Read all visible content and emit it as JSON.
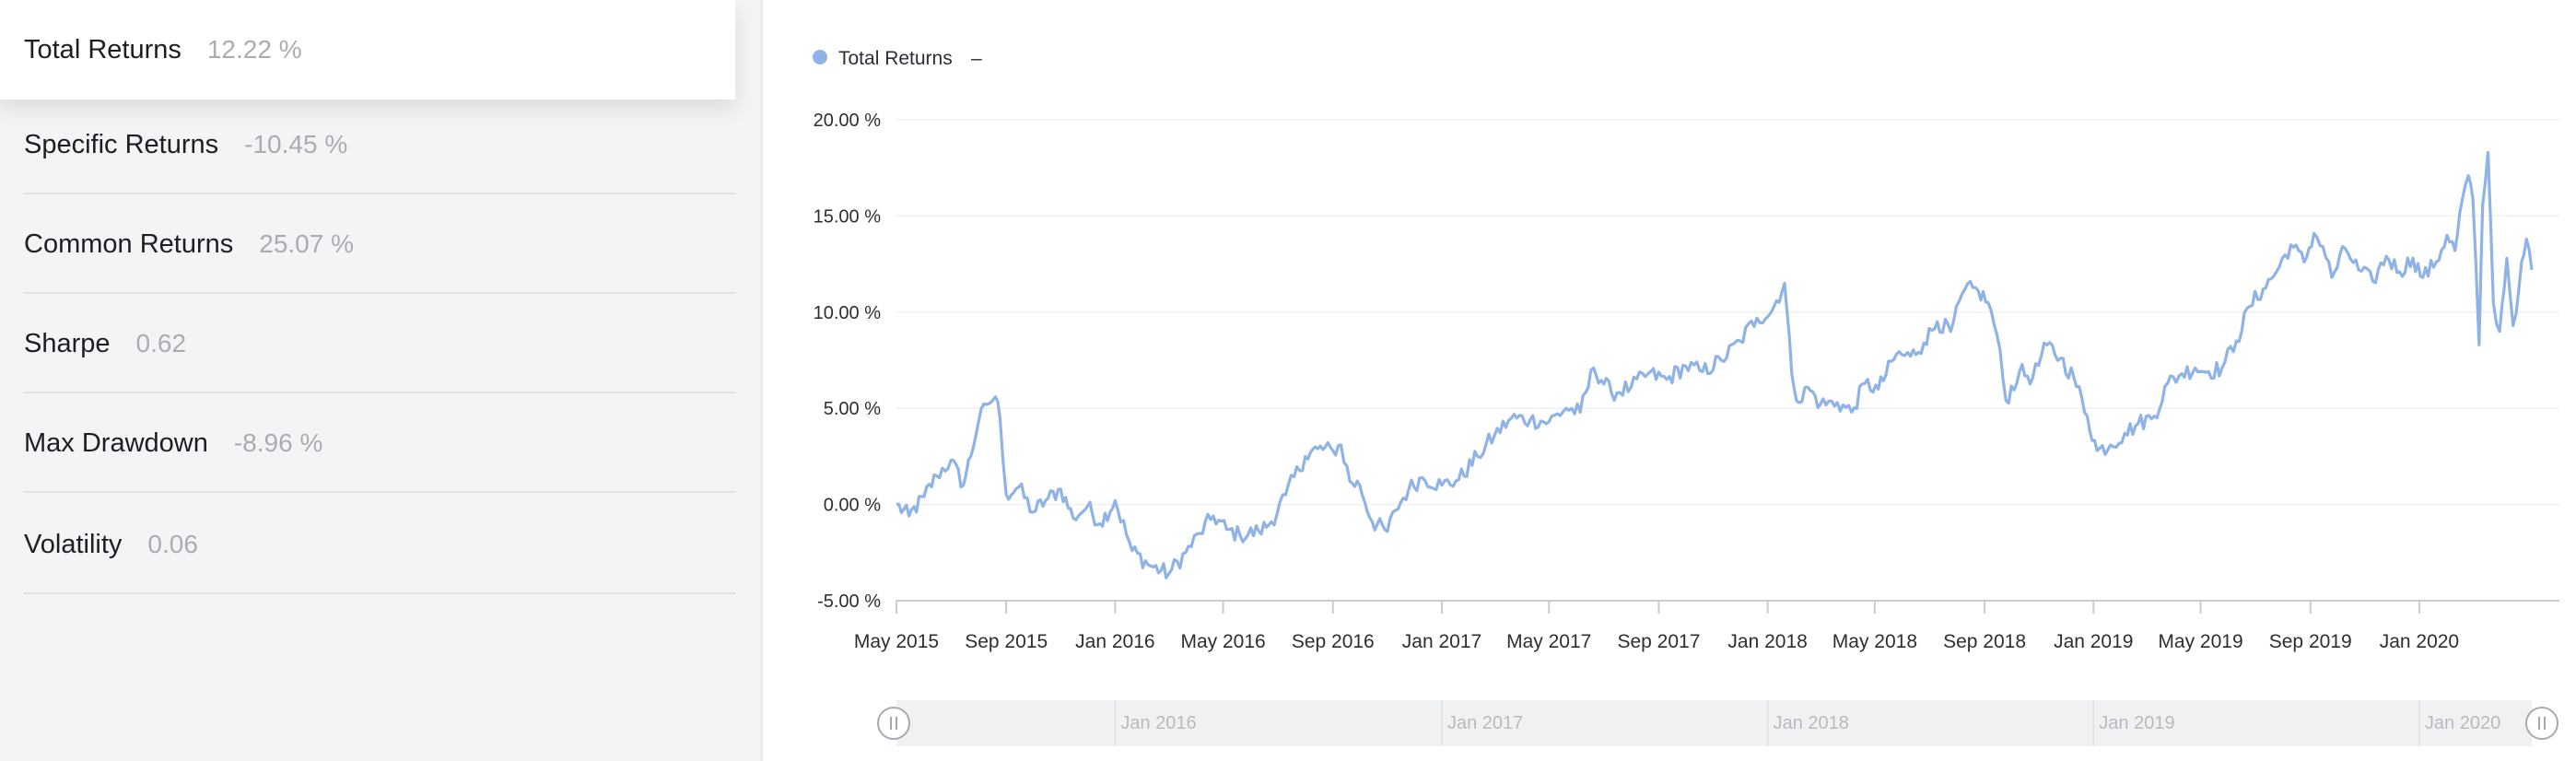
{
  "metrics": [
    {
      "label": "Total Returns",
      "value": "12.22 %"
    },
    {
      "label": "Specific Returns",
      "value": "-10.45 %"
    },
    {
      "label": "Common Returns",
      "value": "25.07 %"
    },
    {
      "label": "Sharpe",
      "value": "0.62"
    },
    {
      "label": "Max Drawdown",
      "value": "-8.96 %"
    },
    {
      "label": "Volatility",
      "value": "0.06"
    }
  ],
  "legend": {
    "label": "Total Returns",
    "value": "–"
  },
  "navigator": {
    "labels": [
      "Jan 2016",
      "Jan 2017",
      "Jan 2018",
      "Jan 2019",
      "Jan 2020"
    ]
  },
  "colors": {
    "series": "#8fb3e6",
    "grid": "#eef0f2",
    "axis": "#c9ccd1",
    "text": "#2b2f35",
    "navigator_bg": "#f0f1f3",
    "navigator_text": "#b7bbc1"
  },
  "chart_data": {
    "type": "line",
    "title": "",
    "xlabel": "",
    "ylabel": "",
    "ylim": [
      -5,
      20
    ],
    "xlim": [
      "2015-05-01",
      "2020-05-06"
    ],
    "y_ticks": [
      "-5.00 %",
      "0.00 %",
      "5.00 %",
      "10.00 %",
      "15.00 %",
      "20.00 %"
    ],
    "x_ticks": [
      "May 2015",
      "Sep 2015",
      "Jan 2016",
      "May 2016",
      "Sep 2016",
      "Jan 2017",
      "May 2017",
      "Sep 2017",
      "Jan 2018",
      "May 2018",
      "Sep 2018",
      "Jan 2019",
      "May 2019",
      "Sep 2019",
      "Jan 2020"
    ],
    "grid": true,
    "legend_position": "top-left",
    "series": [
      {
        "name": "Total Returns",
        "unit": "%",
        "x": [
          "2015-05-01",
          "2015-05-15",
          "2015-06-01",
          "2015-06-15",
          "2015-07-01",
          "2015-07-15",
          "2015-08-01",
          "2015-08-10",
          "2015-08-20",
          "2015-08-25",
          "2015-09-01",
          "2015-09-15",
          "2015-10-01",
          "2015-10-15",
          "2015-11-01",
          "2015-11-15",
          "2015-12-01",
          "2015-12-15",
          "2016-01-01",
          "2016-01-20",
          "2016-02-10",
          "2016-03-01",
          "2016-03-20",
          "2016-04-05",
          "2016-04-20",
          "2016-05-05",
          "2016-05-20",
          "2016-06-10",
          "2016-06-24",
          "2016-07-10",
          "2016-08-01",
          "2016-08-15",
          "2016-09-01",
          "2016-09-10",
          "2016-09-20",
          "2016-10-01",
          "2016-10-15",
          "2016-11-01",
          "2016-11-10",
          "2016-11-25",
          "2016-12-10",
          "2017-01-01",
          "2017-01-20",
          "2017-02-10",
          "2017-03-01",
          "2017-03-20",
          "2017-04-10",
          "2017-05-01",
          "2017-05-20",
          "2017-06-05",
          "2017-06-20",
          "2017-07-10",
          "2017-08-01",
          "2017-08-20",
          "2017-09-10",
          "2017-10-01",
          "2017-10-20",
          "2017-11-10",
          "2017-12-01",
          "2017-12-20",
          "2018-01-05",
          "2018-01-20",
          "2018-01-28",
          "2018-02-05",
          "2018-02-15",
          "2018-03-01",
          "2018-03-20",
          "2018-04-05",
          "2018-04-20",
          "2018-05-05",
          "2018-05-25",
          "2018-06-10",
          "2018-06-25",
          "2018-07-10",
          "2018-07-25",
          "2018-08-10",
          "2018-08-25",
          "2018-09-05",
          "2018-09-15",
          "2018-09-25",
          "2018-10-10",
          "2018-10-25",
          "2018-11-10",
          "2018-11-25",
          "2018-12-10",
          "2018-12-25",
          "2019-01-05",
          "2019-01-20",
          "2019-02-05",
          "2019-02-20",
          "2019-03-10",
          "2019-03-25",
          "2019-04-10",
          "2019-04-25",
          "2019-05-10",
          "2019-05-25",
          "2019-06-10",
          "2019-06-25",
          "2019-07-10",
          "2019-07-25",
          "2019-08-10",
          "2019-08-25",
          "2019-09-05",
          "2019-09-15",
          "2019-09-25",
          "2019-10-10",
          "2019-10-25",
          "2019-11-10",
          "2019-11-25",
          "2019-12-10",
          "2019-12-25",
          "2020-01-05",
          "2020-01-20",
          "2020-02-01",
          "2020-02-10",
          "2020-02-18",
          "2020-02-25",
          "2020-03-01",
          "2020-03-08",
          "2020-03-12",
          "2020-03-18",
          "2020-03-24",
          "2020-03-31",
          "2020-04-08",
          "2020-04-15",
          "2020-04-22",
          "2020-04-30",
          "2020-05-06"
        ],
        "y": [
          0.0,
          -0.6,
          0.4,
          1.5,
          2.3,
          1.0,
          4.3,
          5.2,
          5.6,
          4.5,
          0.5,
          0.9,
          -0.4,
          0.2,
          0.8,
          -0.7,
          -0.1,
          -1.0,
          0.2,
          -2.4,
          -3.2,
          -3.6,
          -2.5,
          -1.5,
          -0.6,
          -1.3,
          -1.6,
          -1.4,
          -0.9,
          0.5,
          2.5,
          2.9,
          2.8,
          3.1,
          1.2,
          1.0,
          -0.9,
          -1.4,
          -0.3,
          0.8,
          1.4,
          1.0,
          1.3,
          2.5,
          3.6,
          4.5,
          4.4,
          4.3,
          5.0,
          4.8,
          7.1,
          5.8,
          6.1,
          6.8,
          6.5,
          7.2,
          6.9,
          7.5,
          8.5,
          9.7,
          10.0,
          11.5,
          6.8,
          5.3,
          6.1,
          5.2,
          5.3,
          4.8,
          6.3,
          6.0,
          7.8,
          7.7,
          8.4,
          9.5,
          9.0,
          11.2,
          11.1,
          10.5,
          8.8,
          5.4,
          6.9,
          6.6,
          8.3,
          7.6,
          6.6,
          4.6,
          2.8,
          3.1,
          3.7,
          4.2,
          4.6,
          6.3,
          6.8,
          7.1,
          6.9,
          7.1,
          8.5,
          10.3,
          11.2,
          12.1,
          13.5,
          12.6,
          14.1,
          13.4,
          11.8,
          13.3,
          12.2,
          11.6,
          12.9,
          12.1,
          12.8,
          11.8,
          12.6,
          14.0,
          13.2,
          15.8,
          17.1,
          15.9,
          8.3,
          15.6,
          18.3,
          10.5,
          9.0,
          12.8,
          9.3,
          11.4,
          13.8,
          12.2
        ]
      }
    ]
  }
}
